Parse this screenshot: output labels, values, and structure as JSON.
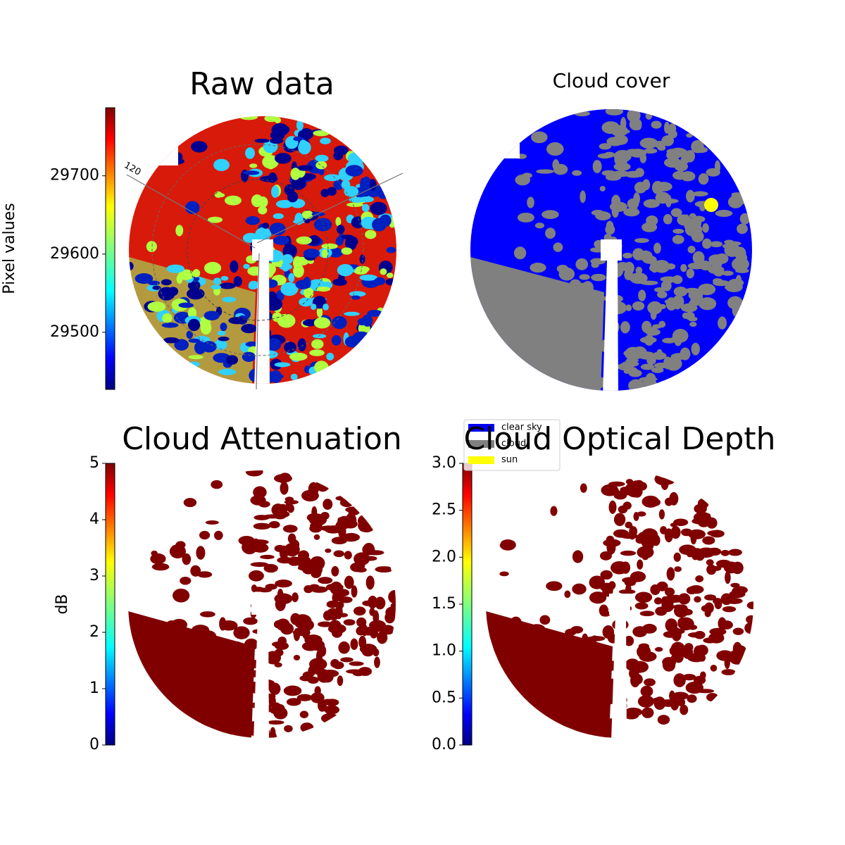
{
  "chart_data": [
    {
      "type": "image",
      "title": "Raw data",
      "ylabel": "Pixel values",
      "ylim": [
        29427,
        29787
      ],
      "yticks": [
        29500,
        29600,
        29700
      ],
      "annotation": "120",
      "colormap": "jet"
    },
    {
      "type": "image",
      "title": "Cloud cover",
      "legend_series": [
        {
          "name": "clear sky",
          "color": "#0000ff"
        },
        {
          "name": "cloud",
          "color": "#808080"
        },
        {
          "name": "sun",
          "color": "#ffff00"
        }
      ]
    },
    {
      "type": "image",
      "title": "Cloud Attenuation",
      "ylabel": "dB",
      "ylim": [
        0,
        5
      ],
      "yticks": [
        0,
        1,
        2,
        3,
        4,
        5
      ],
      "colormap": "jet"
    },
    {
      "type": "image",
      "title": "Cloud Optical Depth",
      "ylim": [
        0,
        3
      ],
      "yticks": [
        {
          "value": 0,
          "label": "0.0"
        },
        0.5,
        {
          "value": 1,
          "label": "1.0"
        },
        1.5,
        {
          "value": 2,
          "label": "2.0"
        },
        2.5,
        {
          "value": 3,
          "label": "3.0"
        }
      ],
      "colormap": "jet"
    }
  ]
}
